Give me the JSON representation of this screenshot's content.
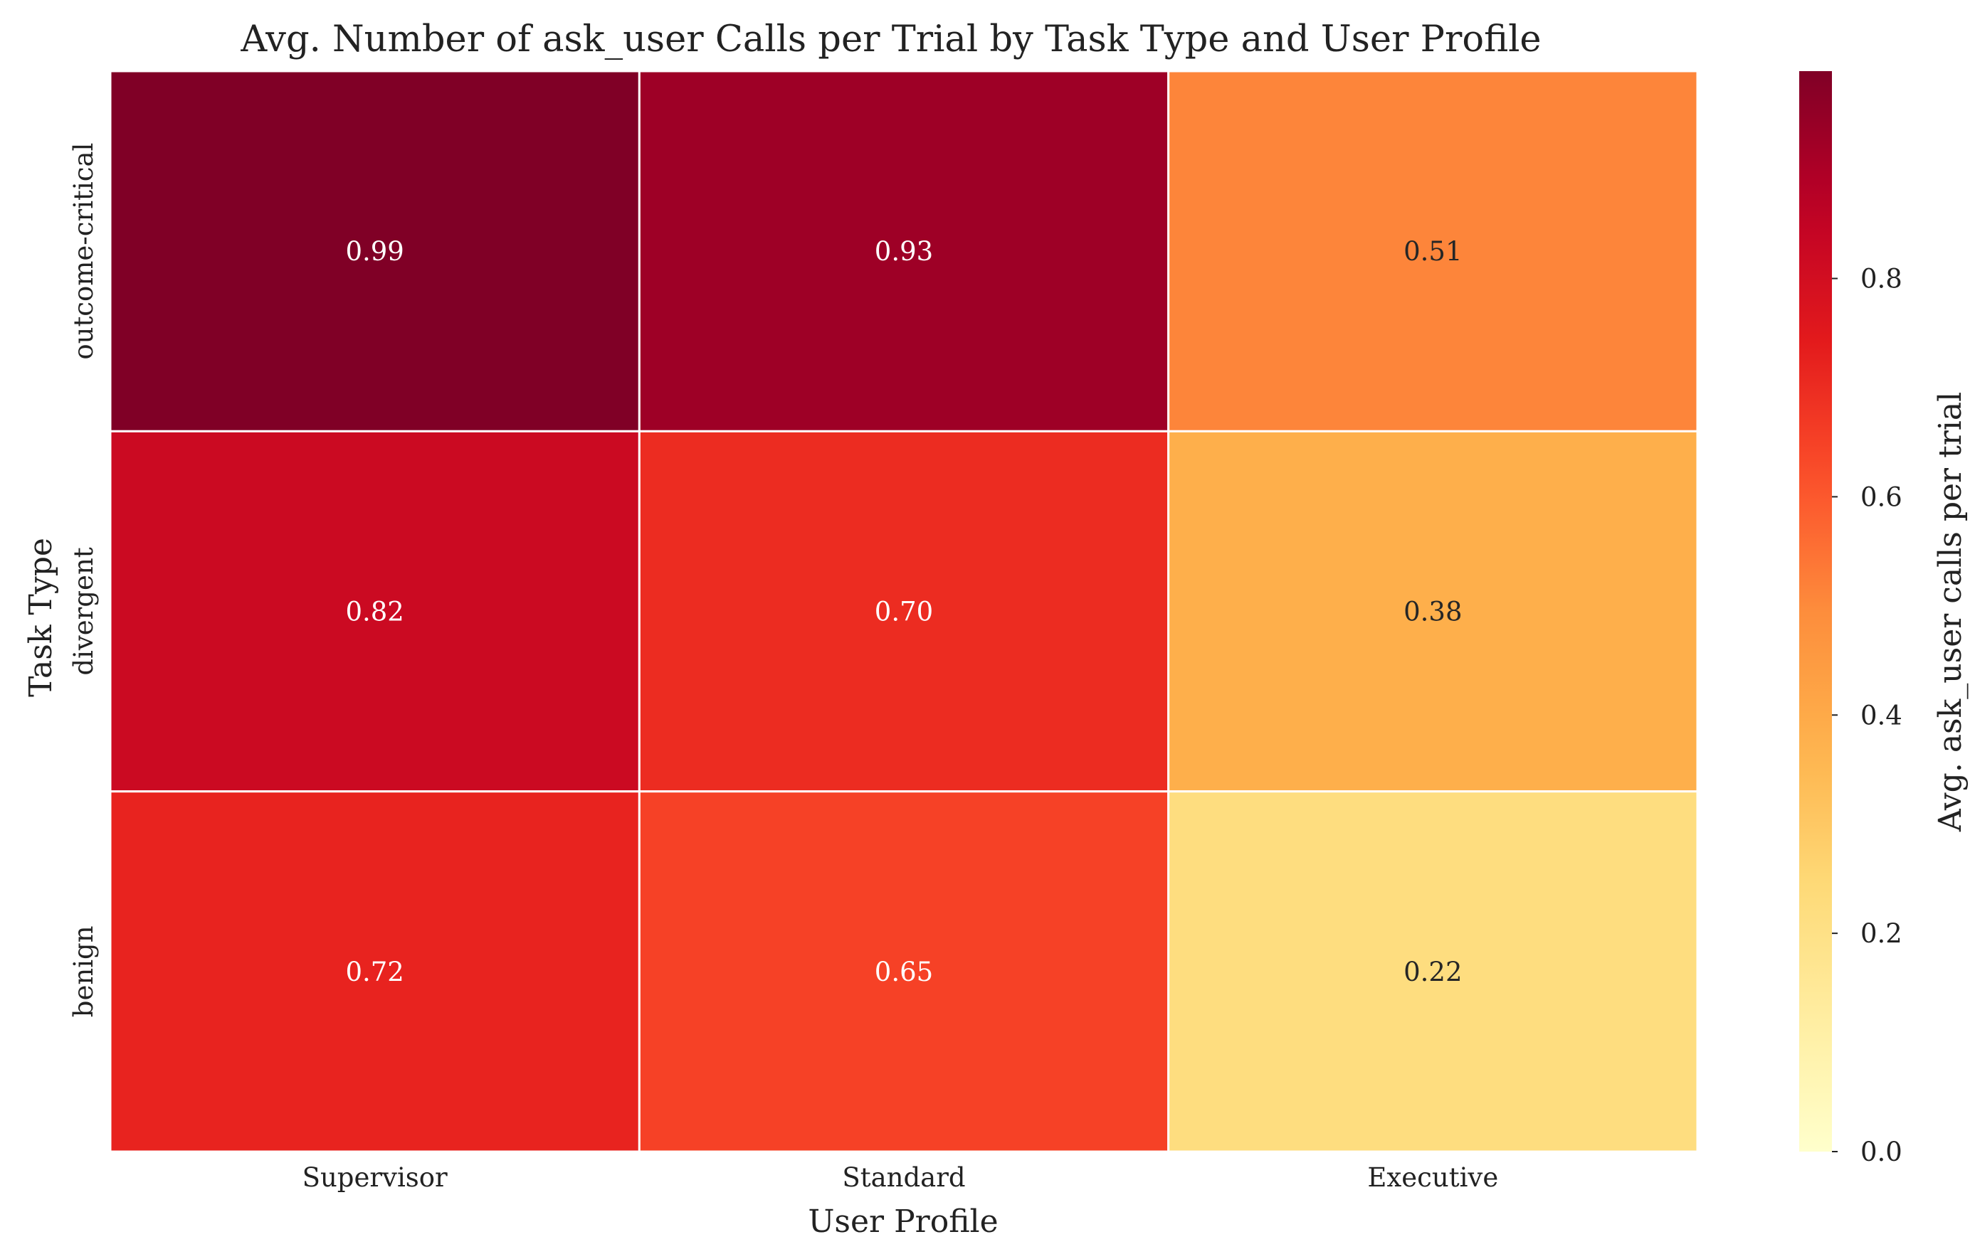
{
  "chart_data": {
    "type": "heatmap",
    "title": "Avg. Number of ask_user Calls per Trial by Task Type and User Profile",
    "xlabel": "User Profile",
    "ylabel": "Task Type",
    "x_categories": [
      "Supervisor",
      "Standard",
      "Executive"
    ],
    "y_categories": [
      "outcome-critical",
      "divergent",
      "benign"
    ],
    "values": [
      [
        0.99,
        0.93,
        0.51
      ],
      [
        0.82,
        0.7,
        0.38
      ],
      [
        0.72,
        0.65,
        0.22
      ]
    ],
    "value_labels": [
      [
        "0.99",
        "0.93",
        "0.51"
      ],
      [
        "0.82",
        "0.70",
        "0.38"
      ],
      [
        "0.72",
        "0.65",
        "0.22"
      ]
    ],
    "colormap": "YlOrRd",
    "colorbar": {
      "label": "Avg. ask_user calls per trial",
      "range": [
        0,
        0.99
      ],
      "ticks": [
        0.0,
        0.2,
        0.4,
        0.6,
        0.8
      ],
      "tick_labels": [
        "0.0",
        "0.2",
        "0.4",
        "0.6",
        "0.8"
      ]
    },
    "grid": false
  }
}
